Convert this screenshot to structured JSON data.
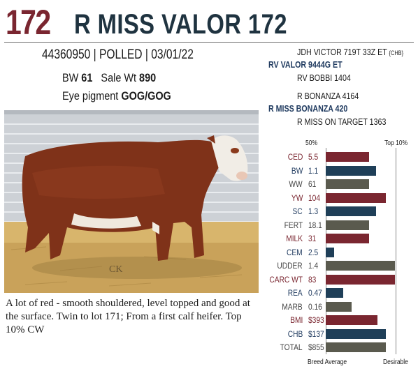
{
  "header": {
    "lot": "172",
    "name": "R MISS VALOR 172"
  },
  "info": {
    "registration": "44360950",
    "horn": "POLLED",
    "birth_date": "03/01/22",
    "bw_label": "BW",
    "bw_value": "61",
    "sale_wt_label": "Sale Wt",
    "sale_wt_value": "890",
    "eye_label": "Eye pigment",
    "eye_value": "GOG/GOG"
  },
  "pedigree": {
    "sire_sire": "JDH VICTOR 719T 33Z ET",
    "sire_sire_tag": "{CHB}",
    "sire": "RV VALOR 9444G ET",
    "sire_dam": "RV BOBBI 1404",
    "dam_sire": "R BONANZA 4164",
    "dam": "R MISS BONANZA 420",
    "dam_dam": "R MISS ON TARGET 1363"
  },
  "photo": {
    "signature": "CK"
  },
  "description": "A lot of red - smooth shouldered, level topped and good at the surface. Twin to lot 171; From a first calf heifer. Top 10% CW",
  "epd": {
    "header_left": "50%",
    "header_right": "Top 10%",
    "footer_left": "Breed Average",
    "footer_right": "Desirable",
    "colors": {
      "red": "#7a2630",
      "navy": "#1f3f58",
      "gray": "#5a5a4e"
    },
    "rows": [
      {
        "trait": "CED",
        "value": "5.5",
        "percentile_fill": 0.62,
        "color": "red"
      },
      {
        "trait": "BW",
        "value": "1.1",
        "percentile_fill": 0.72,
        "color": "navy"
      },
      {
        "trait": "WW",
        "value": "61",
        "percentile_fill": 0.62,
        "color": "gray"
      },
      {
        "trait": "YW",
        "value": "104",
        "percentile_fill": 0.86,
        "color": "red"
      },
      {
        "trait": "SC",
        "value": "1.3",
        "percentile_fill": 0.72,
        "color": "navy"
      },
      {
        "trait": "FERT",
        "value": "18.1",
        "percentile_fill": 0.62,
        "color": "gray"
      },
      {
        "trait": "MILK",
        "value": "31",
        "percentile_fill": 0.62,
        "color": "red"
      },
      {
        "trait": "CEM",
        "value": "2.5",
        "percentile_fill": 0.12,
        "color": "navy"
      },
      {
        "trait": "UDDER",
        "value": "1.4",
        "percentile_fill": 0.99,
        "color": "gray"
      },
      {
        "trait": "CARC WT",
        "value": "83",
        "percentile_fill": 0.99,
        "color": "red"
      },
      {
        "trait": "REA",
        "value": "0.47",
        "percentile_fill": 0.25,
        "color": "navy"
      },
      {
        "trait": "MARB",
        "value": "0.16",
        "percentile_fill": 0.37,
        "color": "gray"
      },
      {
        "trait": "BMI",
        "value": "$393",
        "percentile_fill": 0.74,
        "color": "red"
      },
      {
        "trait": "CHB",
        "value": "$137",
        "percentile_fill": 0.86,
        "color": "navy"
      },
      {
        "trait": "TOTAL",
        "value": "$855",
        "percentile_fill": 0.86,
        "color": "gray"
      }
    ]
  }
}
